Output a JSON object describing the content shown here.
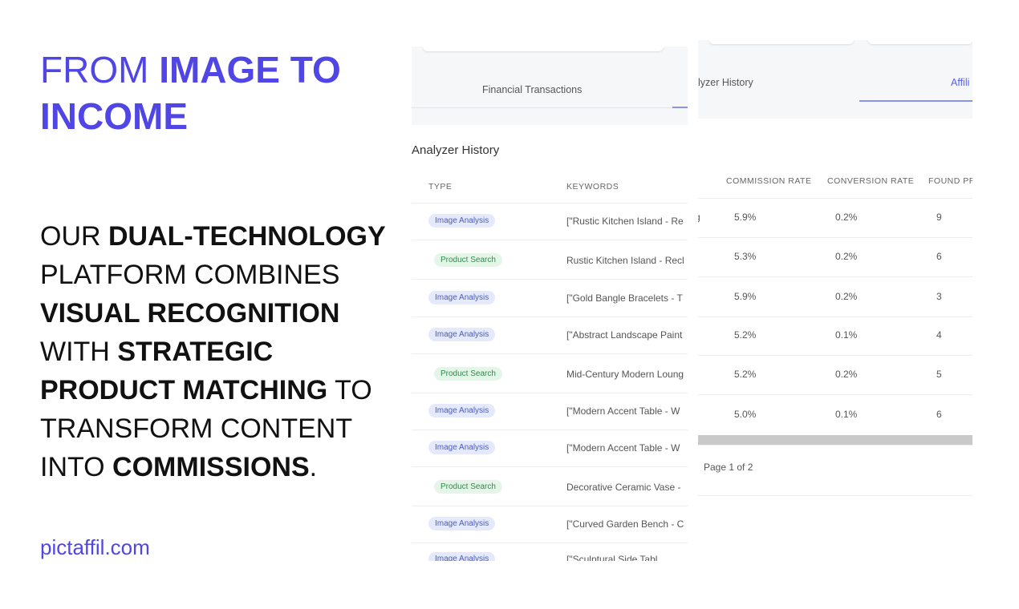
{
  "headline": [
    [
      {
        "text": "FROM ",
        "bold": false
      },
      {
        "text": "IMAGE TO",
        "bold": true
      }
    ],
    [
      {
        "text": "INCOME",
        "bold": true
      }
    ]
  ],
  "body": [
    [
      {
        "text": "OUR ",
        "bold": false
      },
      {
        "text": "DUAL-TECHNOLOGY",
        "bold": true
      }
    ],
    [
      {
        "text": "PLATFORM COMBINES",
        "bold": false
      }
    ],
    [
      {
        "text": "VISUAL RECOGNITION",
        "bold": true
      }
    ],
    [
      {
        "text": "WITH ",
        "bold": false
      },
      {
        "text": "STRATEGIC",
        "bold": true
      }
    ],
    [
      {
        "text": "PRODUCT MATCHING",
        "bold": true
      },
      {
        "text": " TO",
        "bold": false
      }
    ],
    [
      {
        "text": "TRANSFORM CONTENT",
        "bold": false
      }
    ],
    [
      {
        "text": "INTO ",
        "bold": false
      },
      {
        "text": "COMMISSIONS",
        "bold": true
      },
      {
        "text": ".",
        "bold": false
      }
    ]
  ],
  "website": "pictaffil.com",
  "panel_left": {
    "tab": "Financial Transactions",
    "title": "Analyzer History",
    "columns": [
      "TYPE",
      "KEYWORDS"
    ],
    "rows": [
      [
        "Image Analysis",
        "[\"Rustic Kitchen Island - Re"
      ],
      [
        "Product Search",
        "Rustic Kitchen Island - Recl"
      ],
      [
        "Image Analysis",
        "[\"Gold Bangle Bracelets - T"
      ],
      [
        "Image Analysis",
        "[\"Abstract Landscape Paint"
      ],
      [
        "Product Search",
        "Mid-Century Modern Loung"
      ],
      [
        "Image Analysis",
        "[\"Modern Accent Table - W"
      ],
      [
        "Image Analysis",
        "[\"Modern Accent Table - W"
      ],
      [
        "Product Search",
        "Decorative Ceramic Vase -"
      ],
      [
        "Image Analysis",
        "[\"Curved Garden Bench - C"
      ],
      [
        "Image Analysis",
        "[\"Sculptural Side Tabl"
      ]
    ]
  },
  "panel_right": {
    "tabs": [
      "lyzer History",
      "Affili"
    ],
    "fragment": "g",
    "columns": [
      "COMMISSION RATE",
      "CONVERSION RATE",
      "FOUND PR"
    ],
    "rows": [
      [
        "5.9%",
        "0.2%",
        "9"
      ],
      [
        "5.3%",
        "0.2%",
        "6"
      ],
      [
        "5.9%",
        "0.2%",
        "3"
      ],
      [
        "5.2%",
        "0.1%",
        "4"
      ],
      [
        "5.2%",
        "0.2%",
        "5"
      ],
      [
        "5.0%",
        "0.1%",
        "6"
      ]
    ],
    "pagination": "Page 1 of 2"
  }
}
